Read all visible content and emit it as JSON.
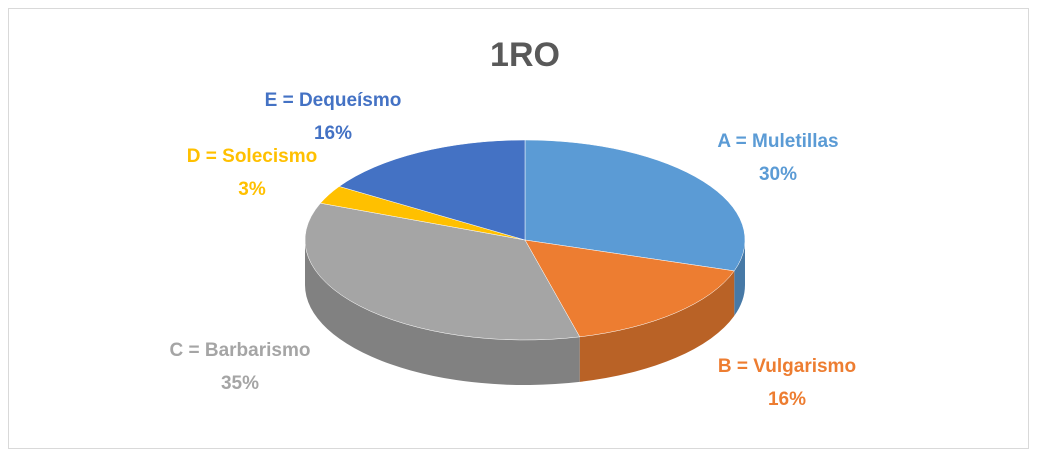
{
  "chart_data": {
    "type": "pie",
    "title": "1RO",
    "categories": [
      "A = Muletillas",
      "B = Vulgarismo",
      "C = Barbarismo",
      "D = Solecismo",
      "E = Dequeísmo"
    ],
    "values": [
      30,
      16,
      35,
      3,
      16
    ],
    "value_labels": [
      "30%",
      "16%",
      "35%",
      "3%",
      "16%"
    ],
    "colors": [
      "#5b9bd5",
      "#ed7d31",
      "#a5a5a5",
      "#ffc000",
      "#4472c4"
    ]
  }
}
